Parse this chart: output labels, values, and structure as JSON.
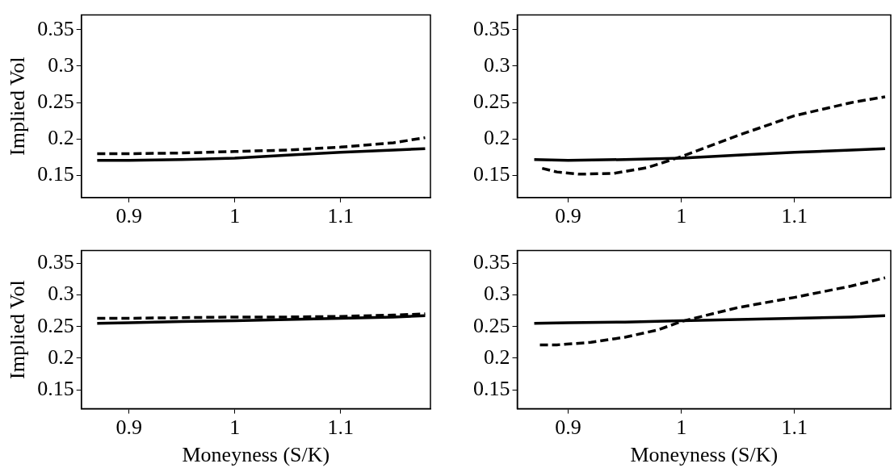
{
  "chart_data": [
    {
      "type": "line",
      "ylabel": "Implied Vol",
      "xlim": [
        0.855,
        1.185
      ],
      "xticks": [
        0.9,
        1,
        1.1
      ],
      "ylim": [
        0.12,
        0.37
      ],
      "yticks": [
        0.15,
        0.2,
        0.25,
        0.3,
        0.35
      ],
      "grid": false,
      "legend": false,
      "marker": "none",
      "series": [
        {
          "color": "#000000",
          "line_style": "solid",
          "x": [
            0.87,
            0.9,
            0.95,
            1.0,
            1.05,
            1.1,
            1.15,
            1.18
          ],
          "values": [
            0.171,
            0.171,
            0.172,
            0.174,
            0.178,
            0.182,
            0.185,
            0.187
          ]
        },
        {
          "color": "#000000",
          "line_style": "dashed",
          "x": [
            0.87,
            0.9,
            0.95,
            1.0,
            1.05,
            1.1,
            1.15,
            1.18
          ],
          "values": [
            0.18,
            0.18,
            0.181,
            0.183,
            0.185,
            0.189,
            0.195,
            0.202
          ]
        }
      ]
    },
    {
      "type": "line",
      "xlim": [
        0.855,
        1.185
      ],
      "xticks": [
        0.9,
        1,
        1.1
      ],
      "ylim": [
        0.12,
        0.37
      ],
      "yticks": [
        0.15,
        0.2,
        0.25,
        0.3,
        0.35
      ],
      "grid": false,
      "legend": false,
      "marker": "none",
      "series": [
        {
          "color": "#000000",
          "line_style": "solid",
          "x": [
            0.87,
            0.9,
            0.95,
            1.0,
            1.05,
            1.1,
            1.15,
            1.18
          ],
          "values": [
            0.172,
            0.171,
            0.172,
            0.174,
            0.178,
            0.182,
            0.185,
            0.187
          ]
        },
        {
          "color": "#000000",
          "line_style": "dashed",
          "x": [
            0.877,
            0.89,
            0.91,
            0.94,
            0.97,
            1.0,
            1.05,
            1.1,
            1.15,
            1.18
          ],
          "values": [
            0.16,
            0.155,
            0.152,
            0.153,
            0.161,
            0.176,
            0.205,
            0.232,
            0.25,
            0.258
          ]
        }
      ]
    },
    {
      "type": "line",
      "ylabel": "Implied Vol",
      "xlabel": "Moneyness (S/K)",
      "xlim": [
        0.855,
        1.185
      ],
      "xticks": [
        0.9,
        1,
        1.1
      ],
      "ylim": [
        0.12,
        0.37
      ],
      "yticks": [
        0.15,
        0.2,
        0.25,
        0.3,
        0.35
      ],
      "grid": false,
      "legend": false,
      "marker": "none",
      "series": [
        {
          "color": "#000000",
          "line_style": "solid",
          "x": [
            0.87,
            0.9,
            0.95,
            1.0,
            1.05,
            1.1,
            1.15,
            1.18
          ],
          "values": [
            0.255,
            0.256,
            0.258,
            0.259,
            0.261,
            0.263,
            0.265,
            0.267
          ]
        },
        {
          "color": "#000000",
          "line_style": "dashed",
          "x": [
            0.87,
            0.9,
            0.95,
            1.0,
            1.05,
            1.1,
            1.15,
            1.18
          ],
          "values": [
            0.263,
            0.263,
            0.264,
            0.265,
            0.265,
            0.266,
            0.268,
            0.27
          ]
        }
      ]
    },
    {
      "type": "line",
      "xlabel": "Moneyness (S/K)",
      "xlim": [
        0.855,
        1.185
      ],
      "xticks": [
        0.9,
        1,
        1.1
      ],
      "ylim": [
        0.12,
        0.37
      ],
      "yticks": [
        0.15,
        0.2,
        0.25,
        0.3,
        0.35
      ],
      "grid": false,
      "legend": false,
      "marker": "none",
      "series": [
        {
          "color": "#000000",
          "line_style": "solid",
          "x": [
            0.87,
            0.9,
            0.95,
            1.0,
            1.05,
            1.1,
            1.15,
            1.18
          ],
          "values": [
            0.255,
            0.256,
            0.257,
            0.259,
            0.261,
            0.263,
            0.265,
            0.267
          ]
        },
        {
          "color": "#000000",
          "line_style": "dashed",
          "x": [
            0.875,
            0.89,
            0.92,
            0.95,
            0.98,
            1.0,
            1.05,
            1.1,
            1.15,
            1.18
          ],
          "values": [
            0.221,
            0.221,
            0.225,
            0.233,
            0.245,
            0.258,
            0.28,
            0.296,
            0.314,
            0.327
          ]
        }
      ]
    }
  ]
}
